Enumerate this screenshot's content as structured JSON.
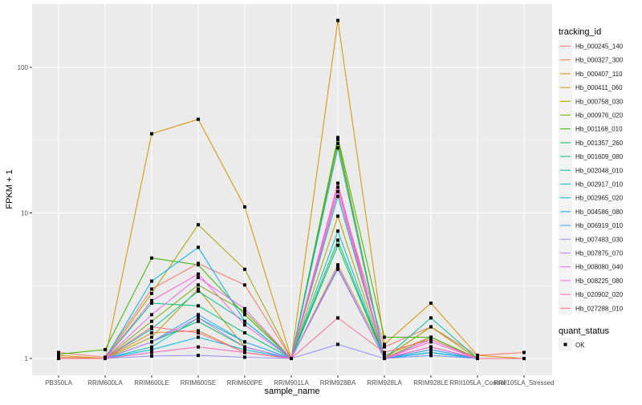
{
  "chart_data": {
    "type": "line",
    "title": "",
    "xlabel": "sample_name",
    "ylabel": "FPKM + 1",
    "y_scale": "log10",
    "ylim": [
      0.95,
      260
    ],
    "y_ticks": [
      1,
      10,
      100
    ],
    "y_tick_labels": [
      "1",
      "10",
      "100"
    ],
    "grid": true,
    "legend_position": "right",
    "categories": [
      "PB350LA",
      "RRIM600LA",
      "RRIM600LE",
      "RRIM600SE",
      "RRIM600PE",
      "RRIM901LA",
      "RRIM928BA",
      "RRIM928LA",
      "RRIM928LE",
      "RRII105LA_Control",
      "RRII105LA_Stressed"
    ],
    "legend_color_title": "tracking_id",
    "legend_shape_title": "quant_status",
    "legend_shape_entries": [
      "OK"
    ],
    "series": [
      {
        "name": "Hb_000245_140",
        "color": "#F8766D",
        "values": [
          1.1,
          1.02,
          3.0,
          4.5,
          3.2,
          1.0,
          15,
          1.2,
          1.65,
          1.05,
          1.1
        ]
      },
      {
        "name": "Hb_000327_300",
        "color": "#EA8331",
        "values": [
          1.02,
          1.0,
          1.5,
          1.55,
          1.1,
          1.0,
          4.4,
          1.05,
          1.4,
          1.0,
          1.0
        ]
      },
      {
        "name": "Hb_000407_110",
        "color": "#D89000",
        "values": [
          1.05,
          1.0,
          35,
          44,
          11,
          1.0,
          210,
          1.25,
          2.4,
          1.05,
          1.0
        ]
      },
      {
        "name": "Hb_000411_060",
        "color": "#C09B00",
        "values": [
          1.0,
          1.0,
          1.4,
          3.0,
          1.2,
          1.0,
          9.5,
          1.0,
          1.65,
          1.0,
          1.0
        ]
      },
      {
        "name": "Hb_000758_030",
        "color": "#A3A500",
        "values": [
          1.0,
          1.0,
          2.8,
          8.3,
          4.1,
          1.0,
          30,
          1.0,
          1.65,
          1.0,
          1.0
        ]
      },
      {
        "name": "Hb_000976_020",
        "color": "#7CAE00",
        "values": [
          1.0,
          1.0,
          1.8,
          3.2,
          2.1,
          1.0,
          32,
          1.0,
          1.4,
          1.0,
          1.0
        ]
      },
      {
        "name": "Hb_001168_010",
        "color": "#39B600",
        "values": [
          1.07,
          1.15,
          4.9,
          4.4,
          2.0,
          1.0,
          33,
          1.4,
          1.4,
          1.0,
          1.0
        ]
      },
      {
        "name": "Hb_001357_260",
        "color": "#00BB4E",
        "values": [
          1.0,
          1.0,
          1.3,
          1.8,
          1.2,
          1.0,
          6.0,
          1.0,
          1.1,
          1.0,
          1.0
        ]
      },
      {
        "name": "Hb_001609_080",
        "color": "#00BF7D",
        "values": [
          1.0,
          1.0,
          2.4,
          2.3,
          1.5,
          1.0,
          6.5,
          1.0,
          1.1,
          1.0,
          1.0
        ]
      },
      {
        "name": "Hb_002048_010",
        "color": "#00C1A3",
        "values": [
          1.0,
          1.0,
          1.6,
          2.9,
          1.8,
          1.0,
          13,
          1.0,
          1.9,
          1.0,
          1.0
        ]
      },
      {
        "name": "Hb_002917_010",
        "color": "#00BFC4",
        "values": [
          1.0,
          1.0,
          1.2,
          1.9,
          1.3,
          1.0,
          7.5,
          1.0,
          1.15,
          1.0,
          1.0
        ]
      },
      {
        "name": "Hb_002965_020",
        "color": "#00BAE0",
        "values": [
          1.0,
          1.0,
          1.15,
          1.4,
          1.15,
          1.0,
          4.2,
          1.0,
          1.05,
          1.0,
          1.0
        ]
      },
      {
        "name": "Hb_004586_080",
        "color": "#00B0F6",
        "values": [
          1.0,
          1.0,
          3.4,
          5.8,
          1.8,
          1.0,
          28,
          1.0,
          1.1,
          1.0,
          1.0
        ]
      },
      {
        "name": "Hb_006919_010",
        "color": "#35A2FF",
        "values": [
          1.0,
          1.0,
          1.3,
          2.0,
          1.3,
          1.0,
          4.2,
          1.0,
          1.15,
          1.0,
          1.0
        ]
      },
      {
        "name": "Hb_007483_030",
        "color": "#9590FF",
        "values": [
          1.0,
          1.0,
          1.04,
          1.05,
          1.02,
          1.0,
          1.25,
          1.0,
          1.05,
          1.0,
          1.0
        ]
      },
      {
        "name": "Hb_007875_070",
        "color": "#C77CFF",
        "values": [
          1.0,
          1.0,
          1.3,
          1.9,
          1.2,
          1.0,
          4.1,
          1.0,
          1.2,
          1.0,
          1.0
        ]
      },
      {
        "name": "Hb_008080_040",
        "color": "#E76BF3",
        "values": [
          1.0,
          1.0,
          2.0,
          3.6,
          2.2,
          1.0,
          15,
          1.0,
          1.35,
          1.0,
          1.0
        ]
      },
      {
        "name": "Hb_008225_080",
        "color": "#FA62DB",
        "values": [
          1.0,
          1.0,
          2.5,
          3.8,
          1.7,
          1.0,
          14,
          1.0,
          1.3,
          1.0,
          1.0
        ]
      },
      {
        "name": "Hb_020902_020",
        "color": "#FF62BC",
        "values": [
          1.0,
          1.0,
          1.1,
          1.2,
          1.1,
          1.0,
          16,
          1.0,
          1.2,
          1.0,
          1.0
        ]
      },
      {
        "name": "Hb_027288_010",
        "color": "#FF6C91",
        "values": [
          1.0,
          1.0,
          1.65,
          1.5,
          1.1,
          1.0,
          1.9,
          1.1,
          1.35,
          1.0,
          1.0
        ]
      }
    ]
  }
}
